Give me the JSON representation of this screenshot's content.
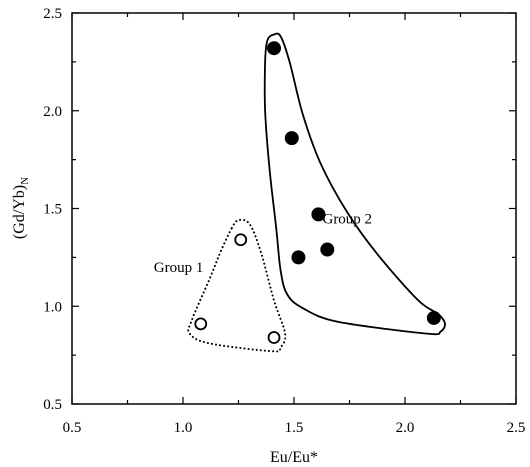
{
  "chart_data": {
    "type": "scatter",
    "xlabel": "Eu/Eu*",
    "ylabel": "(Gd/Yb)",
    "ylabel_subscript": "N",
    "xlim": [
      0.5,
      2.5
    ],
    "ylim": [
      0.5,
      2.5
    ],
    "xticks": [
      "0.5",
      "1.0",
      "1.5",
      "2.0",
      "2.5"
    ],
    "yticks": [
      "0.5",
      "1.0",
      "1.5",
      "2.0",
      "2.5"
    ],
    "grid": false,
    "legend": "none",
    "series": [
      {
        "marker": "open-circle",
        "points": [
          [
            1.26,
            1.34
          ],
          [
            1.08,
            0.91
          ],
          [
            1.41,
            0.84
          ]
        ]
      },
      {
        "marker": "filled-circle",
        "points": [
          [
            1.41,
            2.32
          ],
          [
            1.49,
            1.86
          ],
          [
            1.61,
            1.47
          ],
          [
            1.65,
            1.29
          ],
          [
            1.52,
            1.25
          ],
          [
            2.13,
            0.94
          ]
        ]
      }
    ],
    "annotations": [
      {
        "text": "Group 1",
        "x": 0.98,
        "y": 1.2
      },
      {
        "text": "Group 2",
        "x": 1.74,
        "y": 1.45
      }
    ],
    "group_outlines": [
      {
        "style": "dotted",
        "points": [
          [
            1.22,
            1.4
          ],
          [
            1.25,
            1.44
          ],
          [
            1.3,
            1.42
          ],
          [
            1.35,
            1.28
          ],
          [
            1.41,
            1.03
          ],
          [
            1.46,
            0.86
          ],
          [
            1.44,
            0.79
          ],
          [
            1.4,
            0.77
          ],
          [
            1.12,
            0.81
          ],
          [
            1.03,
            0.86
          ],
          [
            1.04,
            0.93
          ],
          [
            1.12,
            1.14
          ],
          [
            1.17,
            1.28
          ],
          [
            1.22,
            1.4
          ]
        ]
      },
      {
        "style": "solid",
        "points": [
          [
            1.38,
            2.36
          ],
          [
            1.41,
            2.39
          ],
          [
            1.44,
            2.38
          ],
          [
            1.48,
            2.25
          ],
          [
            1.54,
            1.98
          ],
          [
            1.62,
            1.73
          ],
          [
            1.74,
            1.48
          ],
          [
            1.88,
            1.26
          ],
          [
            2.06,
            1.03
          ],
          [
            2.15,
            0.96
          ],
          [
            2.18,
            0.91
          ],
          [
            2.16,
            0.87
          ],
          [
            2.1,
            0.86
          ],
          [
            1.7,
            0.92
          ],
          [
            1.54,
            0.99
          ],
          [
            1.47,
            1.06
          ],
          [
            1.44,
            1.18
          ],
          [
            1.42,
            1.4
          ],
          [
            1.39,
            1.7
          ],
          [
            1.37,
            2.0
          ],
          [
            1.37,
            2.25
          ],
          [
            1.38,
            2.36
          ]
        ]
      }
    ]
  }
}
